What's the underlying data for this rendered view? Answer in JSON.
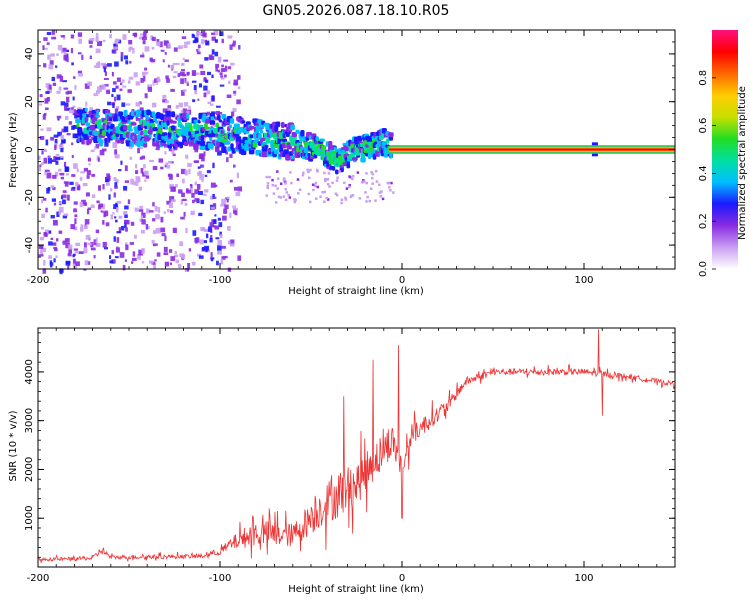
{
  "figure": {
    "title": "GN05.2026.087.18.10.R05"
  },
  "chart_data": [
    {
      "type": "heatmap",
      "name": "spectrogram",
      "xlabel": "Height of straight line (km)",
      "ylabel": "Frequency (Hz)",
      "xlim": [
        -200,
        150
      ],
      "ylim": [
        -50,
        50
      ],
      "xticks": [
        -200,
        -100,
        0,
        100
      ],
      "xtick_labels": [
        "-200",
        "-100",
        "0",
        "100"
      ],
      "yticks": [
        -40,
        -20,
        0,
        20,
        40
      ],
      "ytick_labels": [
        "-40",
        "-20",
        "0",
        "20",
        "40"
      ],
      "band_center_profile": [
        {
          "x": -175,
          "y": 10
        },
        {
          "x": -150,
          "y": 9
        },
        {
          "x": -120,
          "y": 8
        },
        {
          "x": -100,
          "y": 7
        },
        {
          "x": -80,
          "y": 5
        },
        {
          "x": -60,
          "y": 3
        },
        {
          "x": -45,
          "y": 0
        },
        {
          "x": -35,
          "y": -5
        },
        {
          "x": -28,
          "y": -1
        },
        {
          "x": -20,
          "y": 1
        },
        {
          "x": -10,
          "y": 3
        },
        {
          "x": -5,
          "y": 1
        },
        {
          "x": 0,
          "y": 0
        },
        {
          "x": 150,
          "y": 0
        }
      ],
      "steady_line": {
        "x_from": -7,
        "x_to": 150,
        "frequency": 0,
        "amplitude": 0.95
      },
      "colorbar": {
        "label": "Normalized spectral amplitude",
        "range": [
          0,
          1
        ],
        "ticks": [
          0.0,
          0.2,
          0.4,
          0.6,
          0.8
        ],
        "tick_labels": [
          "0.0",
          "0.2",
          "0.4",
          "0.6",
          "0.8"
        ],
        "colors": [
          "#ffffff",
          "#c99ef2",
          "#8a2be2",
          "#1a1aff",
          "#00bfff",
          "#00e0a0",
          "#22dd22",
          "#c8e000",
          "#ffcc00",
          "#ff6600",
          "#ff0000",
          "#ff1080"
        ]
      }
    },
    {
      "type": "line",
      "name": "snr",
      "xlabel": "Height of straight line (km)",
      "ylabel": "SNR (10 * v/v)",
      "xlim": [
        -200,
        150
      ],
      "ylim": [
        0,
        4900
      ],
      "xticks": [
        -200,
        -100,
        0,
        100
      ],
      "xtick_labels": [
        "-200",
        "-100",
        "0",
        "100"
      ],
      "yticks": [
        1000,
        2000,
        3000,
        4000
      ],
      "ytick_labels": [
        "1000",
        "2000",
        "3000",
        "4000"
      ],
      "color": "#ee3333",
      "envelope": [
        {
          "x": -200,
          "base": 150,
          "noise": 70
        },
        {
          "x": -170,
          "base": 180,
          "noise": 90
        },
        {
          "x": -165,
          "base": 350,
          "noise": 200
        },
        {
          "x": -160,
          "base": 200,
          "noise": 90
        },
        {
          "x": -110,
          "base": 220,
          "noise": 100
        },
        {
          "x": -100,
          "base": 320,
          "noise": 160
        },
        {
          "x": -90,
          "base": 550,
          "noise": 400
        },
        {
          "x": -80,
          "base": 700,
          "noise": 600
        },
        {
          "x": -60,
          "base": 650,
          "noise": 550
        },
        {
          "x": -45,
          "base": 1200,
          "noise": 900
        },
        {
          "x": -35,
          "base": 1500,
          "noise": 1100
        },
        {
          "x": -25,
          "base": 1700,
          "noise": 1000
        },
        {
          "x": -15,
          "base": 2200,
          "noise": 900
        },
        {
          "x": -5,
          "base": 2600,
          "noise": 700
        },
        {
          "x": 0,
          "base": 2000,
          "noise": 600
        },
        {
          "x": 5,
          "base": 2700,
          "noise": 500
        },
        {
          "x": 15,
          "base": 3000,
          "noise": 400
        },
        {
          "x": 25,
          "base": 3300,
          "noise": 300
        },
        {
          "x": 35,
          "base": 3800,
          "noise": 200
        },
        {
          "x": 50,
          "base": 4000,
          "noise": 150
        },
        {
          "x": 100,
          "base": 4000,
          "noise": 150
        },
        {
          "x": 125,
          "base": 3900,
          "noise": 120
        },
        {
          "x": 150,
          "base": 3750,
          "noise": 110
        }
      ],
      "spikes": [
        {
          "x": -32,
          "y": 3500
        },
        {
          "x": -16,
          "y": 4250
        },
        {
          "x": -2,
          "y": 4550
        },
        {
          "x": 0,
          "y": 1000
        },
        {
          "x": 108,
          "y": 4870
        },
        {
          "x": 110,
          "y": 3100
        }
      ]
    }
  ]
}
